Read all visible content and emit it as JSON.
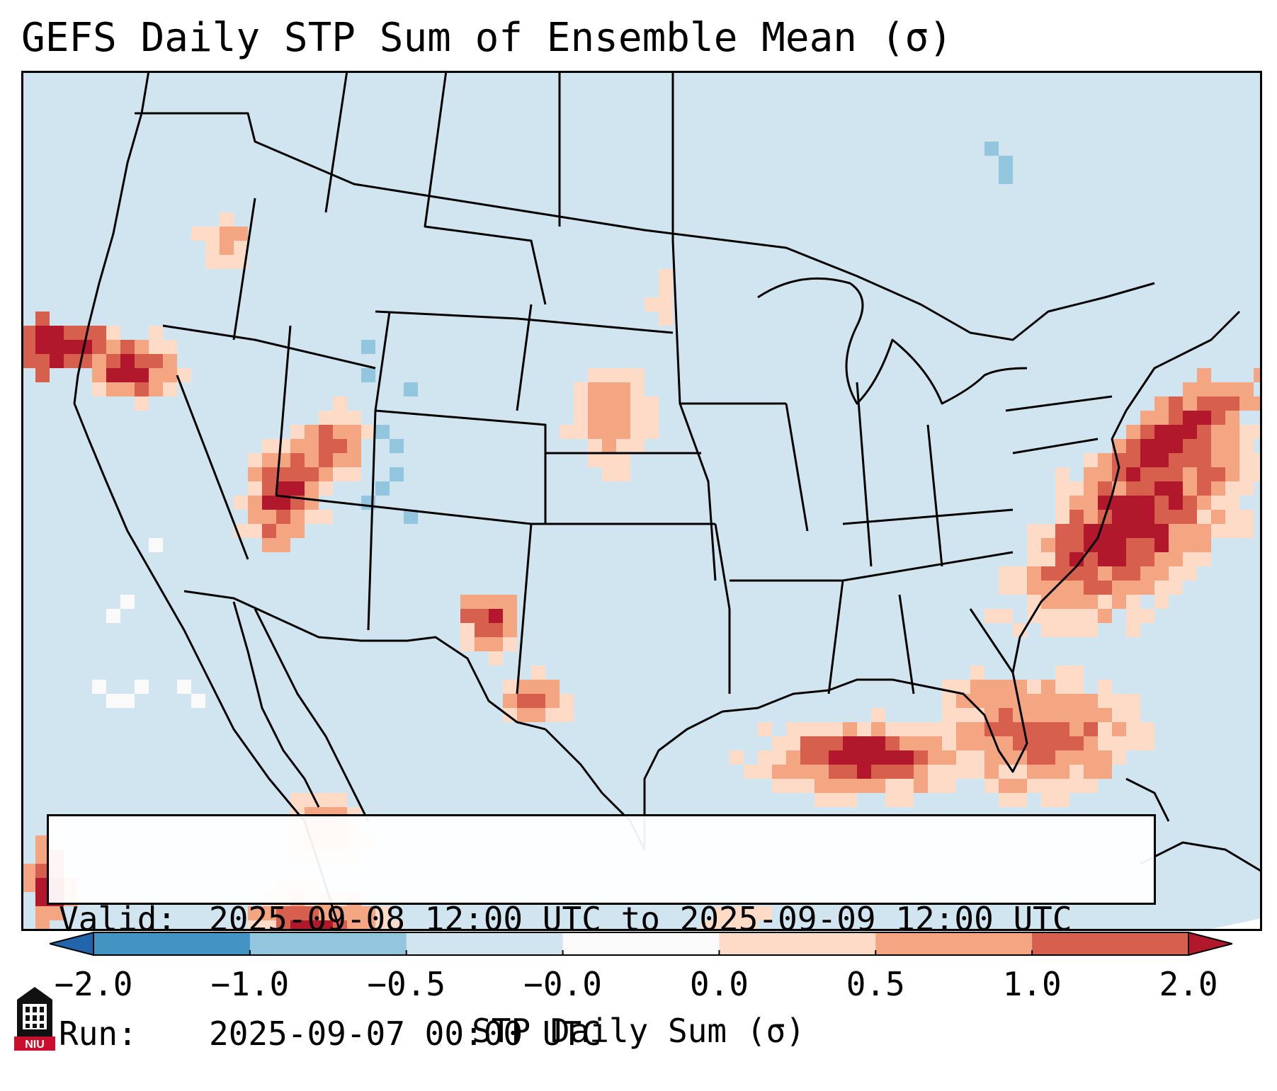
{
  "title": "GEFS Daily STP Sum of Ensemble Mean (σ)",
  "info": {
    "valid_label": "Valid:",
    "valid_value": "2025-09-08 12:00 UTC to 2025-09-09 12:00 UTC",
    "run_label": "Run:",
    "run_value": "2025-09-07 00:00 UTC"
  },
  "colorbar": {
    "label": "STP Daily Sum (σ)",
    "tick_labels": [
      "−2.0",
      "−1.0",
      "−0.5",
      "−0.0",
      "0.0",
      "0.5",
      "1.0",
      "2.0"
    ],
    "colors": [
      "#2166ac",
      "#4393c3",
      "#92c5de",
      "#d1e5f0",
      "#fafafa",
      "#fddbc7",
      "#f4a582",
      "#d6604d",
      "#b2182b"
    ]
  },
  "map": {
    "ocean_color": "#d1e5f0",
    "land_color": "#d1e5f0",
    "line_color": "#000000"
  },
  "logo": {
    "text": "NIU",
    "name": "niu-logo"
  }
}
